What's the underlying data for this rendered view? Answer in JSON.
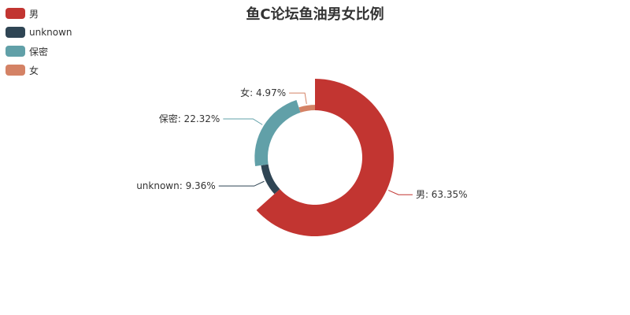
{
  "chart_data": {
    "type": "pie",
    "variant": "donut",
    "title": "鱼C论坛鱼油男女比例",
    "legend_position": "top-left",
    "series": [
      {
        "name": "男",
        "percent": 63.35,
        "label": "男: 63.35%",
        "color": "#c23531"
      },
      {
        "name": "unknown",
        "percent": 9.36,
        "label": "unknown: 9.36%",
        "color": "#2f4554"
      },
      {
        "name": "保密",
        "percent": 22.32,
        "label": "保密: 22.32%",
        "color": "#61a0a8"
      },
      {
        "name": "女",
        "percent": 4.97,
        "label": "女: 4.97%",
        "color": "#d48265"
      }
    ]
  }
}
